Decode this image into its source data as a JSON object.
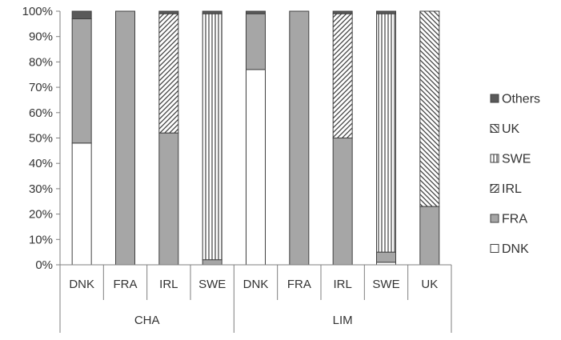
{
  "chart_data": {
    "type": "bar",
    "stacked": true,
    "normalized": true,
    "groups": [
      {
        "label": "CHA",
        "categories": [
          "DNK",
          "FRA",
          "IRL",
          "SWE"
        ]
      },
      {
        "label": "LIM",
        "categories": [
          "DNK",
          "FRA",
          "IRL",
          "SWE",
          "UK"
        ]
      }
    ],
    "bars": [
      {
        "group": "CHA",
        "category": "DNK",
        "segments": {
          "DNK": 48,
          "FRA": 49,
          "IRL": 0,
          "SWE": 0,
          "UK": 0,
          "Others": 3
        }
      },
      {
        "group": "CHA",
        "category": "FRA",
        "segments": {
          "DNK": 0,
          "FRA": 100,
          "IRL": 0,
          "SWE": 0,
          "UK": 0,
          "Others": 0
        }
      },
      {
        "group": "CHA",
        "category": "IRL",
        "segments": {
          "DNK": 0,
          "FRA": 52,
          "IRL": 47,
          "SWE": 0,
          "UK": 0,
          "Others": 1
        }
      },
      {
        "group": "CHA",
        "category": "SWE",
        "segments": {
          "DNK": 0,
          "FRA": 2,
          "IRL": 0,
          "SWE": 97,
          "UK": 0,
          "Others": 1
        }
      },
      {
        "group": "LIM",
        "category": "DNK",
        "segments": {
          "DNK": 77,
          "FRA": 22,
          "IRL": 0,
          "SWE": 0,
          "UK": 0,
          "Others": 1
        }
      },
      {
        "group": "LIM",
        "category": "FRA",
        "segments": {
          "DNK": 0,
          "FRA": 100,
          "IRL": 0,
          "SWE": 0,
          "UK": 0,
          "Others": 0
        }
      },
      {
        "group": "LIM",
        "category": "IRL",
        "segments": {
          "DNK": 0,
          "FRA": 50,
          "IRL": 49,
          "SWE": 0,
          "UK": 0,
          "Others": 1
        }
      },
      {
        "group": "LIM",
        "category": "SWE",
        "segments": {
          "DNK": 1,
          "FRA": 4,
          "IRL": 0,
          "SWE": 94,
          "UK": 0,
          "Others": 1
        }
      },
      {
        "group": "LIM",
        "category": "UK",
        "segments": {
          "DNK": 0,
          "FRA": 23,
          "IRL": 0,
          "SWE": 0,
          "UK": 77,
          "Others": 0
        }
      }
    ],
    "series": [
      {
        "name": "DNK",
        "fill": "white"
      },
      {
        "name": "FRA",
        "fill": "gray"
      },
      {
        "name": "IRL",
        "fill": "diagonal-hatch"
      },
      {
        "name": "SWE",
        "fill": "vertical-hatch"
      },
      {
        "name": "UK",
        "fill": "back-diagonal-hatch"
      },
      {
        "name": "Others",
        "fill": "dark"
      }
    ],
    "legend_order": [
      "Others",
      "UK",
      "SWE",
      "IRL",
      "FRA",
      "DNK"
    ],
    "legend_position": "right",
    "y_ticks": [
      "0%",
      "10%",
      "20%",
      "30%",
      "40%",
      "50%",
      "60%",
      "70%",
      "80%",
      "90%",
      "100%"
    ],
    "ylim": [
      0,
      100
    ],
    "grid": false,
    "colors": {
      "gray": "#a6a6a6",
      "dark": "#595959",
      "stroke": "#404040",
      "axis": "#7f7f7f"
    }
  }
}
